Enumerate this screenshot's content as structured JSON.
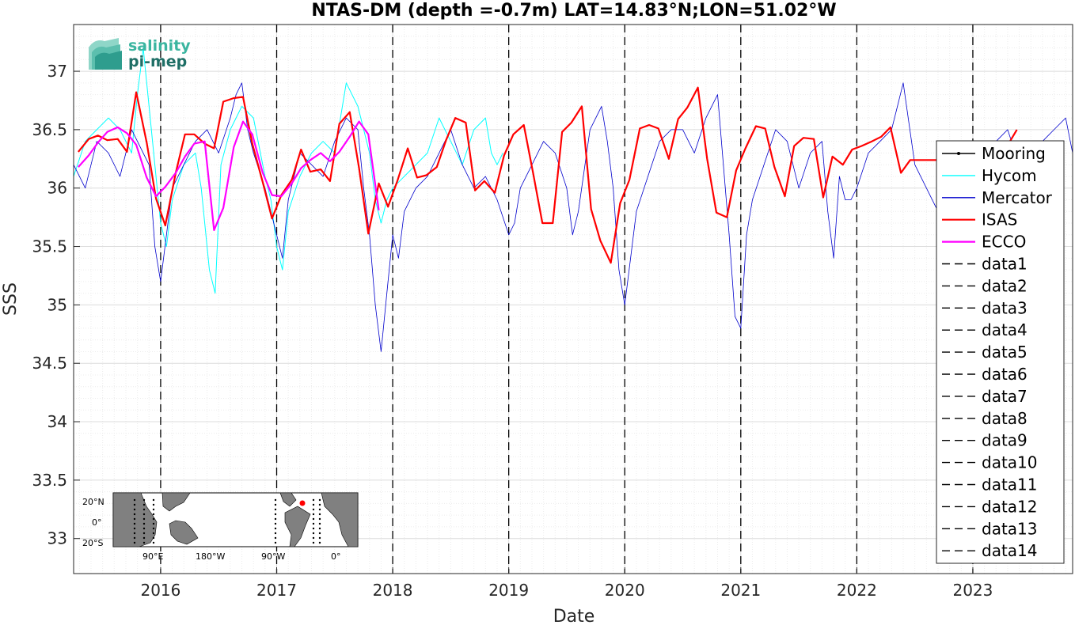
{
  "chart_data": {
    "type": "line",
    "title": "NTAS-DM (depth =-0.7m) LAT=14.83°N;LON=51.02°W",
    "xlabel": "Date",
    "ylabel": "SSS",
    "xlim": [
      2015.25,
      2023.86
    ],
    "ylim": [
      32.7,
      37.4
    ],
    "x_ticks": [
      2016,
      2017,
      2018,
      2019,
      2020,
      2021,
      2022,
      2023
    ],
    "x_tick_labels": [
      "2016",
      "2017",
      "2018",
      "2019",
      "2020",
      "2021",
      "2022",
      "2023"
    ],
    "y_ticks": [
      33,
      33.5,
      34,
      34.5,
      35,
      35.5,
      36,
      36.5,
      37
    ],
    "y_tick_labels": [
      "33",
      "33.5",
      "34",
      "34.5",
      "35",
      "35.5",
      "36",
      "36.5",
      "37"
    ],
    "grid": true,
    "legend_position": "right",
    "year_markers": [
      2016,
      2017,
      2018,
      2019,
      2020,
      2021,
      2022,
      2023
    ],
    "series": [
      {
        "name": "Mooring",
        "color": "#000000",
        "style": "solid-dot",
        "x": [],
        "y": []
      },
      {
        "name": "Hycom",
        "color": "#00ffff",
        "x": [
          2015.25,
          2015.35,
          2015.45,
          2015.55,
          2015.65,
          2015.75,
          2015.8,
          2015.85,
          2015.9,
          2015.95,
          2016.0,
          2016.05,
          2016.1,
          2016.2,
          2016.3,
          2016.35,
          2016.42,
          2016.47,
          2016.52,
          2016.6,
          2016.7,
          2016.8,
          2016.9,
          2016.95,
          2017.0,
          2017.05,
          2017.1,
          2017.2,
          2017.3,
          2017.4,
          2017.5,
          2017.55,
          2017.6,
          2017.7,
          2017.8,
          2017.85,
          2017.9,
          2017.95,
          2018.0,
          2018.1,
          2018.2,
          2018.3,
          2018.4,
          2018.5,
          2018.6,
          2018.7,
          2018.8,
          2018.85,
          2018.9,
          2018.95
        ],
        "y": [
          36.1,
          36.4,
          36.5,
          36.6,
          36.5,
          36.3,
          36.8,
          37.2,
          36.7,
          36.2,
          35.7,
          35.5,
          35.9,
          36.2,
          36.3,
          36.0,
          35.3,
          35.1,
          36.2,
          36.5,
          36.7,
          36.6,
          36.1,
          35.9,
          35.5,
          35.3,
          35.8,
          36.1,
          36.3,
          36.4,
          36.3,
          36.6,
          36.9,
          36.7,
          36.3,
          35.9,
          35.7,
          35.9,
          36.0,
          36.1,
          36.2,
          36.3,
          36.6,
          36.4,
          36.2,
          36.5,
          36.6,
          36.3,
          36.2,
          36.3
        ]
      },
      {
        "name": "Mercator",
        "color": "#0000cc",
        "x": [
          2015.25,
          2015.35,
          2015.45,
          2015.55,
          2015.65,
          2015.75,
          2015.8,
          2015.85,
          2015.9,
          2015.95,
          2016.0,
          2016.05,
          2016.1,
          2016.2,
          2016.3,
          2016.4,
          2016.5,
          2016.6,
          2016.65,
          2016.7,
          2016.75,
          2016.8,
          2016.9,
          2017.0,
          2017.05,
          2017.1,
          2017.2,
          2017.3,
          2017.4,
          2017.5,
          2017.6,
          2017.7,
          2017.75,
          2017.8,
          2017.85,
          2017.9,
          2017.95,
          2018.0,
          2018.05,
          2018.1,
          2018.2,
          2018.3,
          2018.4,
          2018.5,
          2018.6,
          2018.7,
          2018.8,
          2018.9,
          2019.0,
          2019.05,
          2019.1,
          2019.2,
          2019.3,
          2019.4,
          2019.5,
          2019.55,
          2019.6,
          2019.7,
          2019.8,
          2019.85,
          2019.9,
          2019.95,
          2020.0,
          2020.05,
          2020.1,
          2020.2,
          2020.3,
          2020.4,
          2020.5,
          2020.6,
          2020.7,
          2020.8,
          2020.85,
          2020.9,
          2020.95,
          2021.0,
          2021.05,
          2021.1,
          2021.2,
          2021.3,
          2021.4,
          2021.5,
          2021.6,
          2021.7,
          2021.75,
          2021.8,
          2021.85,
          2021.9,
          2021.95,
          2022.0,
          2022.1,
          2022.2,
          2022.3,
          2022.35,
          2022.4,
          2022.5,
          2022.6,
          2022.7,
          2022.8,
          2022.9,
          2023.0,
          2023.1,
          2023.2,
          2023.3,
          2023.4,
          2023.5,
          2023.6,
          2023.7,
          2023.8,
          2023.86
        ],
        "y": [
          36.2,
          36.0,
          36.4,
          36.3,
          36.1,
          36.5,
          36.4,
          36.3,
          36.2,
          35.5,
          35.2,
          35.6,
          36.0,
          36.2,
          36.4,
          36.5,
          36.3,
          36.6,
          36.8,
          36.9,
          36.5,
          36.3,
          36.0,
          35.6,
          35.4,
          35.9,
          36.3,
          36.2,
          36.1,
          36.4,
          36.6,
          36.5,
          36.0,
          35.6,
          35.0,
          34.6,
          35.1,
          35.6,
          35.4,
          35.8,
          36.0,
          36.1,
          36.3,
          36.5,
          36.2,
          36.0,
          36.1,
          35.9,
          35.6,
          35.7,
          36.0,
          36.2,
          36.4,
          36.3,
          36.0,
          35.6,
          35.8,
          36.5,
          36.7,
          36.4,
          36.0,
          35.3,
          35.0,
          35.4,
          35.8,
          36.1,
          36.4,
          36.5,
          36.5,
          36.3,
          36.6,
          36.8,
          36.2,
          35.6,
          34.9,
          34.8,
          35.6,
          35.9,
          36.2,
          36.5,
          36.4,
          36.0,
          36.3,
          36.4,
          35.8,
          35.4,
          36.1,
          35.9,
          35.9,
          36.0,
          36.3,
          36.4,
          36.5,
          36.7,
          36.9,
          36.2,
          36.0,
          35.8,
          36.0,
          36.1,
          36.3,
          36.2,
          36.4,
          36.5,
          36.2,
          36.1,
          36.4,
          36.5,
          36.6,
          36.3
        ]
      },
      {
        "name": "ISAS",
        "color": "#ff0000",
        "x": [
          2015.29,
          2015.38,
          2015.46,
          2015.54,
          2015.63,
          2015.71,
          2015.79,
          2015.88,
          2015.96,
          2016.04,
          2016.13,
          2016.21,
          2016.29,
          2016.38,
          2016.46,
          2016.54,
          2016.63,
          2016.71,
          2016.79,
          2016.88,
          2016.96,
          2017.04,
          2017.13,
          2017.21,
          2017.29,
          2017.38,
          2017.46,
          2017.54,
          2017.63,
          2017.71,
          2017.79,
          2017.88,
          2017.96,
          2018.04,
          2018.13,
          2018.21,
          2018.29,
          2018.38,
          2018.46,
          2018.54,
          2018.63,
          2018.71,
          2018.79,
          2018.88,
          2018.96,
          2019.04,
          2019.13,
          2019.21,
          2019.29,
          2019.38,
          2019.46,
          2019.54,
          2019.63,
          2019.71,
          2019.79,
          2019.88,
          2019.96,
          2020.04,
          2020.13,
          2020.21,
          2020.29,
          2020.38,
          2020.46,
          2020.54,
          2020.63,
          2020.71,
          2020.79,
          2020.88,
          2020.96,
          2021.04,
          2021.13,
          2021.21,
          2021.29,
          2021.38,
          2021.46,
          2021.54,
          2021.63,
          2021.71,
          2021.79,
          2021.88,
          2021.96,
          2022.04,
          2022.13,
          2022.21,
          2022.29,
          2022.38,
          2022.46,
          2022.54,
          2022.63,
          2022.71,
          2023.29,
          2023.38
        ],
        "y": [
          36.31,
          36.42,
          36.45,
          36.41,
          36.42,
          36.31,
          36.82,
          36.39,
          35.91,
          35.68,
          36.13,
          36.46,
          36.46,
          36.38,
          36.34,
          36.74,
          36.77,
          36.78,
          36.38,
          36.05,
          35.74,
          35.94,
          36.07,
          36.33,
          36.14,
          36.16,
          36.06,
          36.55,
          36.65,
          36.17,
          35.61,
          36.04,
          35.84,
          36.06,
          36.34,
          36.09,
          36.11,
          36.18,
          36.41,
          36.6,
          36.56,
          35.98,
          36.06,
          35.96,
          36.28,
          36.46,
          36.54,
          36.13,
          35.7,
          35.7,
          36.48,
          36.56,
          36.7,
          35.82,
          35.55,
          35.36,
          35.87,
          36.07,
          36.51,
          36.54,
          36.51,
          36.25,
          36.59,
          36.69,
          36.86,
          36.25,
          35.79,
          35.75,
          36.15,
          36.34,
          36.53,
          36.51,
          36.18,
          35.93,
          36.36,
          36.43,
          36.42,
          35.92,
          36.27,
          36.2,
          36.33,
          36.36,
          36.4,
          36.44,
          36.52,
          36.13,
          36.24,
          36.24,
          36.24,
          36.24,
          36.35,
          36.5
        ]
      },
      {
        "name": "ECCO",
        "color": "#ff00ff",
        "x": [
          2015.29,
          2015.38,
          2015.46,
          2015.54,
          2015.63,
          2015.71,
          2015.79,
          2015.88,
          2015.96,
          2016.04,
          2016.13,
          2016.21,
          2016.29,
          2016.38,
          2016.46,
          2016.54,
          2016.63,
          2016.71,
          2016.79,
          2016.88,
          2016.96,
          2017.04,
          2017.13,
          2017.21,
          2017.29,
          2017.38,
          2017.46,
          2017.54,
          2017.63,
          2017.71,
          2017.79,
          2017.88
        ],
        "y": [
          36.18,
          36.28,
          36.39,
          36.48,
          36.52,
          36.47,
          36.37,
          36.09,
          35.93,
          36.01,
          36.13,
          36.27,
          36.38,
          36.4,
          35.64,
          35.83,
          36.35,
          36.57,
          36.46,
          36.13,
          35.94,
          35.93,
          36.04,
          36.17,
          36.24,
          36.3,
          36.23,
          36.31,
          36.44,
          36.57,
          36.46,
          35.81
        ]
      },
      {
        "name": "data1",
        "color": "#000000",
        "style": "dashed",
        "x": [],
        "y": []
      },
      {
        "name": "data2",
        "color": "#000000",
        "style": "dashed",
        "x": [],
        "y": []
      },
      {
        "name": "data3",
        "color": "#000000",
        "style": "dashed",
        "x": [],
        "y": []
      },
      {
        "name": "data4",
        "color": "#000000",
        "style": "dashed",
        "x": [],
        "y": []
      },
      {
        "name": "data5",
        "color": "#000000",
        "style": "dashed",
        "x": [],
        "y": []
      },
      {
        "name": "data6",
        "color": "#000000",
        "style": "dashed",
        "x": [],
        "y": []
      },
      {
        "name": "data7",
        "color": "#000000",
        "style": "dashed",
        "x": [],
        "y": []
      },
      {
        "name": "data8",
        "color": "#000000",
        "style": "dashed",
        "x": [],
        "y": []
      },
      {
        "name": "data9",
        "color": "#000000",
        "style": "dashed",
        "x": [],
        "y": []
      },
      {
        "name": "data10",
        "color": "#000000",
        "style": "dashed",
        "x": [],
        "y": []
      },
      {
        "name": "data11",
        "color": "#000000",
        "style": "dashed",
        "x": [],
        "y": []
      },
      {
        "name": "data12",
        "color": "#000000",
        "style": "dashed",
        "x": [],
        "y": []
      },
      {
        "name": "data13",
        "color": "#000000",
        "style": "dashed",
        "x": [],
        "y": []
      },
      {
        "name": "data14",
        "color": "#000000",
        "style": "dashed",
        "x": [],
        "y": []
      }
    ]
  },
  "inset_map": {
    "lat_labels": [
      "20°N",
      "0°",
      "20°S"
    ],
    "lon_labels": [
      "90°E",
      "180°W",
      "90°W",
      "0°"
    ],
    "marker_color": "#ff0000"
  },
  "logo": {
    "line1": "salinity",
    "line2": "pi-mep"
  }
}
